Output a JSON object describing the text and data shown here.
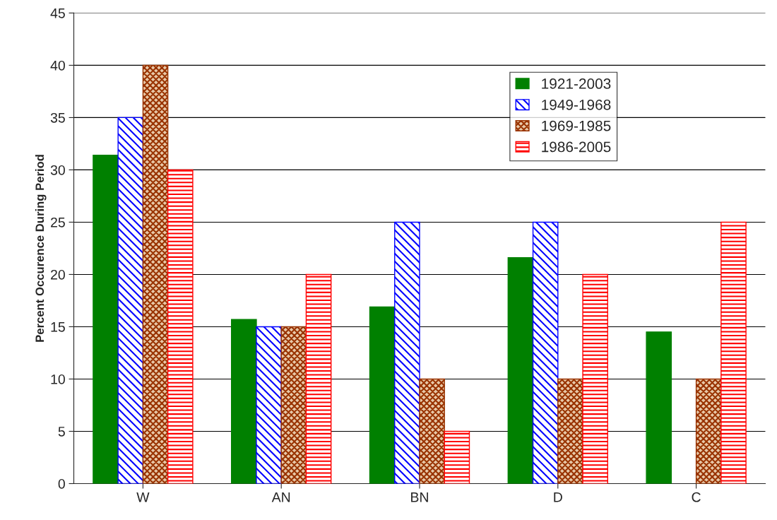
{
  "chart_data": {
    "type": "bar",
    "ylabel": "Percent Occurence During Period",
    "categories": [
      "W",
      "AN",
      "BN",
      "D",
      "C"
    ],
    "series": [
      {
        "name": "1921-2003",
        "color": "#008000",
        "values": [
          31.4,
          15.7,
          16.9,
          21.6,
          14.5
        ]
      },
      {
        "name": "1949-1968",
        "color": "#0000ff",
        "values": [
          35,
          15,
          25,
          25,
          0
        ]
      },
      {
        "name": "1969-1985",
        "color": "#993300",
        "values": [
          40,
          15,
          10,
          10,
          10
        ]
      },
      {
        "name": "1986-2005",
        "color": "#ff0000",
        "values": [
          30,
          20,
          5,
          20,
          25
        ]
      }
    ],
    "ylim": [
      0,
      45
    ],
    "yticks": [
      0,
      5,
      10,
      15,
      20,
      25,
      30,
      35,
      40,
      45
    ],
    "grid": "y",
    "legend": "top right"
  }
}
